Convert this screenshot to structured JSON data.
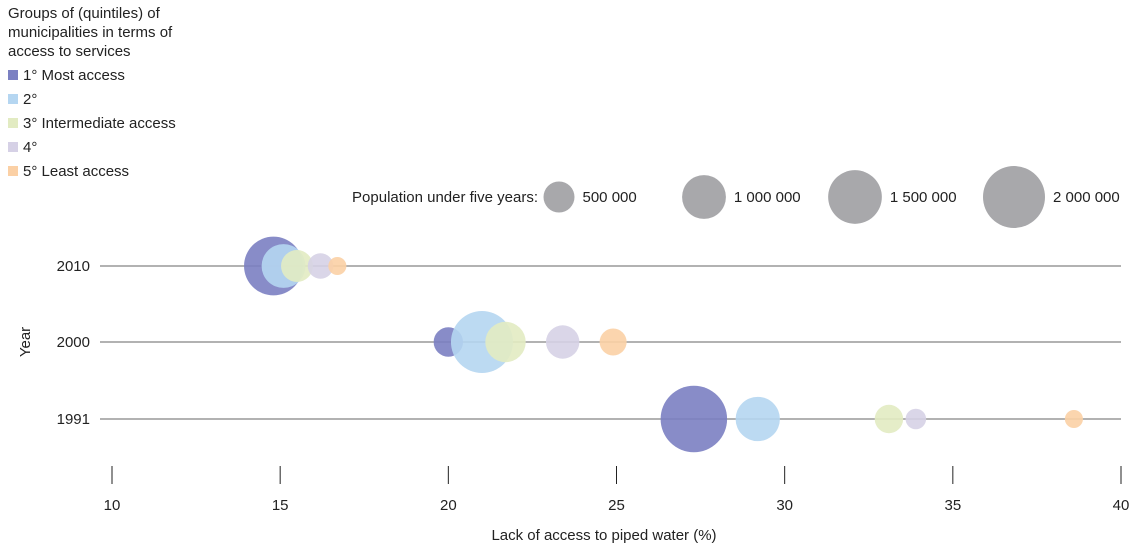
{
  "chart_data": {
    "type": "bubble",
    "legend": {
      "title": "Groups of (quintiles) of municipalities in terms of access to services",
      "items": [
        {
          "label": "1° Most access",
          "color": "#7b80c2"
        },
        {
          "label": "2°",
          "color": "#b5d6f1"
        },
        {
          "label": "3° Intermediate access",
          "color": "#e2ebc2"
        },
        {
          "label": "4°",
          "color": "#d6d1e6"
        },
        {
          "label": "5° Least access",
          "color": "#fbd0a5"
        }
      ]
    },
    "size_legend": {
      "label": "Population under five years:",
      "items": [
        {
          "value": 500000,
          "label": "500 000"
        },
        {
          "value": 1000000,
          "label": "1 000 000"
        },
        {
          "value": 1500000,
          "label": "1 500 000"
        },
        {
          "value": 2000000,
          "label": "2 000 000"
        }
      ]
    },
    "xlabel": "Lack of access to piped water (%)",
    "ylabel": "Year",
    "xlim": [
      10,
      40
    ],
    "x_ticks": [
      10,
      15,
      20,
      25,
      30,
      35,
      40
    ],
    "years": [
      "2010",
      "2000",
      "1991"
    ],
    "series": [
      {
        "year": "2010",
        "points": [
          {
            "group": 0,
            "x": 14.8,
            "size": 1800000
          },
          {
            "group": 1,
            "x": 15.1,
            "size": 1000000
          },
          {
            "group": 2,
            "x": 15.5,
            "size": 530000
          },
          {
            "group": 3,
            "x": 16.2,
            "size": 340000
          },
          {
            "group": 4,
            "x": 16.7,
            "size": 170000
          }
        ]
      },
      {
        "year": "2000",
        "points": [
          {
            "group": 0,
            "x": 20.0,
            "size": 450000
          },
          {
            "group": 1,
            "x": 21.0,
            "size": 2000000
          },
          {
            "group": 2,
            "x": 21.7,
            "size": 850000
          },
          {
            "group": 3,
            "x": 23.4,
            "size": 580000
          },
          {
            "group": 4,
            "x": 24.9,
            "size": 380000
          }
        ]
      },
      {
        "year": "1991",
        "points": [
          {
            "group": 0,
            "x": 27.3,
            "size": 2300000
          },
          {
            "group": 1,
            "x": 29.2,
            "size": 1020000
          },
          {
            "group": 2,
            "x": 33.1,
            "size": 420000
          },
          {
            "group": 3,
            "x": 33.9,
            "size": 220000
          },
          {
            "group": 4,
            "x": 38.6,
            "size": 170000
          }
        ]
      }
    ]
  }
}
